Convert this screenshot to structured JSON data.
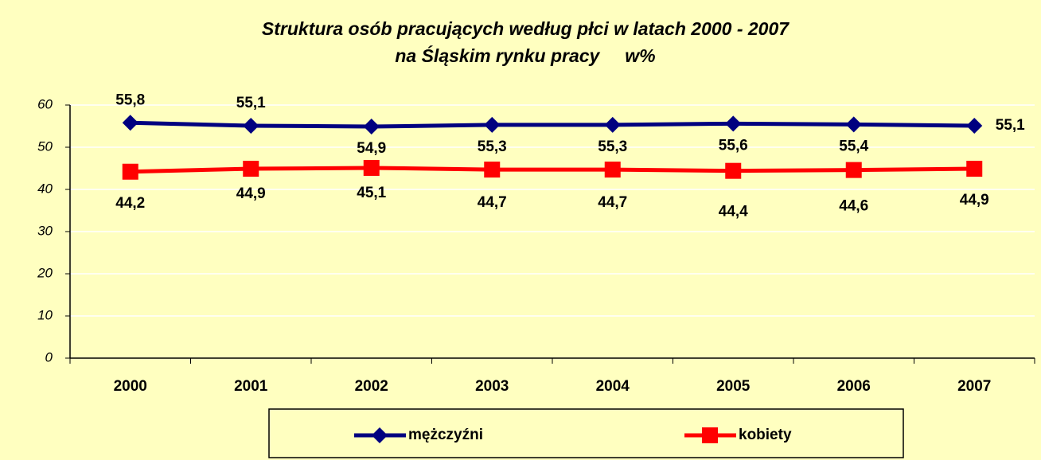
{
  "chart_data": {
    "type": "line",
    "title": "Struktura osób pracujących według płci w latach 2000 - 2007",
    "subtitle": "na Śląskim rynku pracy     w%",
    "categories": [
      "2000",
      "2001",
      "2002",
      "2003",
      "2004",
      "2005",
      "2006",
      "2007"
    ],
    "series": [
      {
        "name": "mężczyźni",
        "color": "#000080",
        "marker": "diamond",
        "values": [
          55.8,
          55.1,
          54.9,
          55.3,
          55.3,
          55.6,
          55.4,
          55.1
        ],
        "value_labels": [
          "55,8",
          "55,1",
          "54,9",
          "55,3",
          "55,3",
          "55,6",
          "55,4",
          "55,1"
        ]
      },
      {
        "name": "kobiety",
        "color": "#ff0000",
        "marker": "square",
        "values": [
          44.2,
          44.9,
          45.1,
          44.7,
          44.7,
          44.4,
          44.6,
          44.9
        ],
        "value_labels": [
          "44,2",
          "44,9",
          "45,1",
          "44,7",
          "44,7",
          "44,4",
          "44,6",
          "44,9"
        ]
      }
    ],
    "ylim": [
      0,
      60
    ],
    "yticks": [
      0,
      10,
      20,
      30,
      40,
      50,
      60
    ],
    "grid": true,
    "legend": "bottom"
  }
}
